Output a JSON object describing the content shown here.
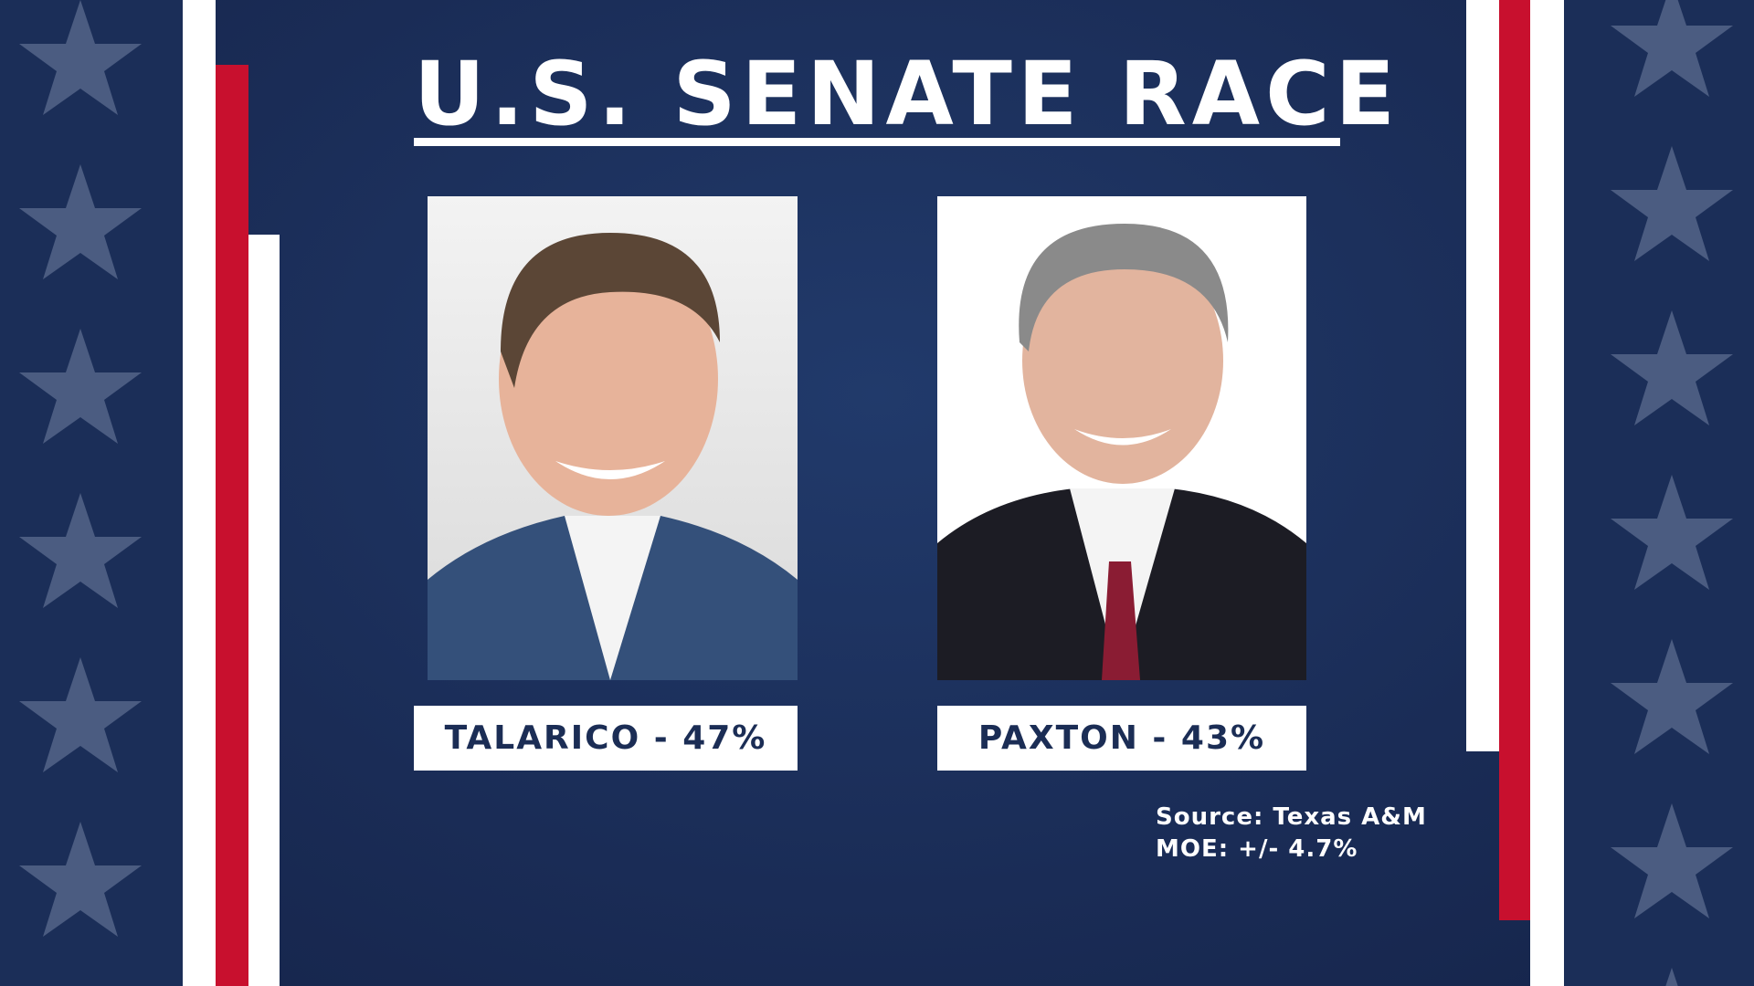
{
  "header": {
    "title": "U.S. SENATE RACE"
  },
  "candidates": [
    {
      "label": "TALARICO - 47%"
    },
    {
      "label": "PAXTON - 43%"
    }
  ],
  "footer": {
    "source": "Source: Texas A&M",
    "moe": "MOE: +/- 4.7%"
  }
}
